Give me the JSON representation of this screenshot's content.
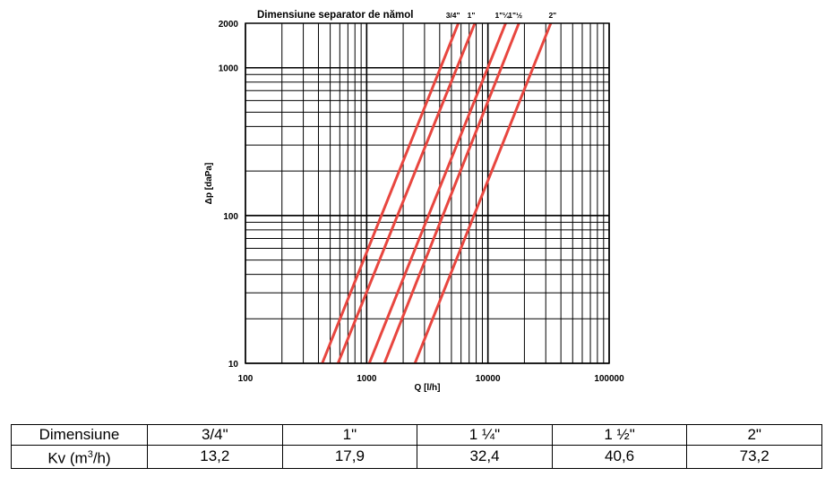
{
  "chart_data": {
    "type": "line",
    "title": "Dimensiune separator de nămol",
    "xlabel": "Q [l/h]",
    "ylabel": "Δp [daPa]",
    "x_scale": "log",
    "y_scale": "log",
    "xlim": [
      100,
      100000
    ],
    "ylim": [
      10,
      2000
    ],
    "grid": true,
    "line_color": "#e8463f",
    "x_ticks": [
      "100",
      "1000",
      "10000",
      "100000"
    ],
    "x_tick_values": [
      100,
      1000,
      10000,
      100000
    ],
    "y_ticks": [
      "10",
      "100",
      "1000",
      "2000"
    ],
    "y_tick_values": [
      10,
      100,
      1000,
      2000
    ],
    "legend": [
      "3/4\"",
      "1\"",
      "1\"¼",
      "1\"½",
      "2\""
    ],
    "series": [
      {
        "name": "3/4\"",
        "x": [
          430,
          5700
        ],
        "y": [
          10,
          2000
        ]
      },
      {
        "name": "1\"",
        "x": [
          580,
          7800
        ],
        "y": [
          10,
          2000
        ]
      },
      {
        "name": "1\"¼",
        "x": [
          1050,
          14000
        ],
        "y": [
          10,
          2000
        ]
      },
      {
        "name": "1\"½",
        "x": [
          1400,
          18000
        ],
        "y": [
          10,
          2000
        ]
      },
      {
        "name": "2\"",
        "x": [
          2500,
          33000
        ],
        "y": [
          10,
          2000
        ]
      }
    ]
  },
  "table": {
    "row1_label": "Dimensiune",
    "row2_label_main": "Kv (m",
    "row2_label_sup": "3",
    "row2_label_end": "/h)",
    "sizes": [
      "3/4\"",
      "1\"",
      "1 ¼\"",
      "1 ½\"",
      "2\""
    ],
    "kv": [
      "13,2",
      "17,9",
      "32,4",
      "40,6",
      "73,2"
    ]
  }
}
